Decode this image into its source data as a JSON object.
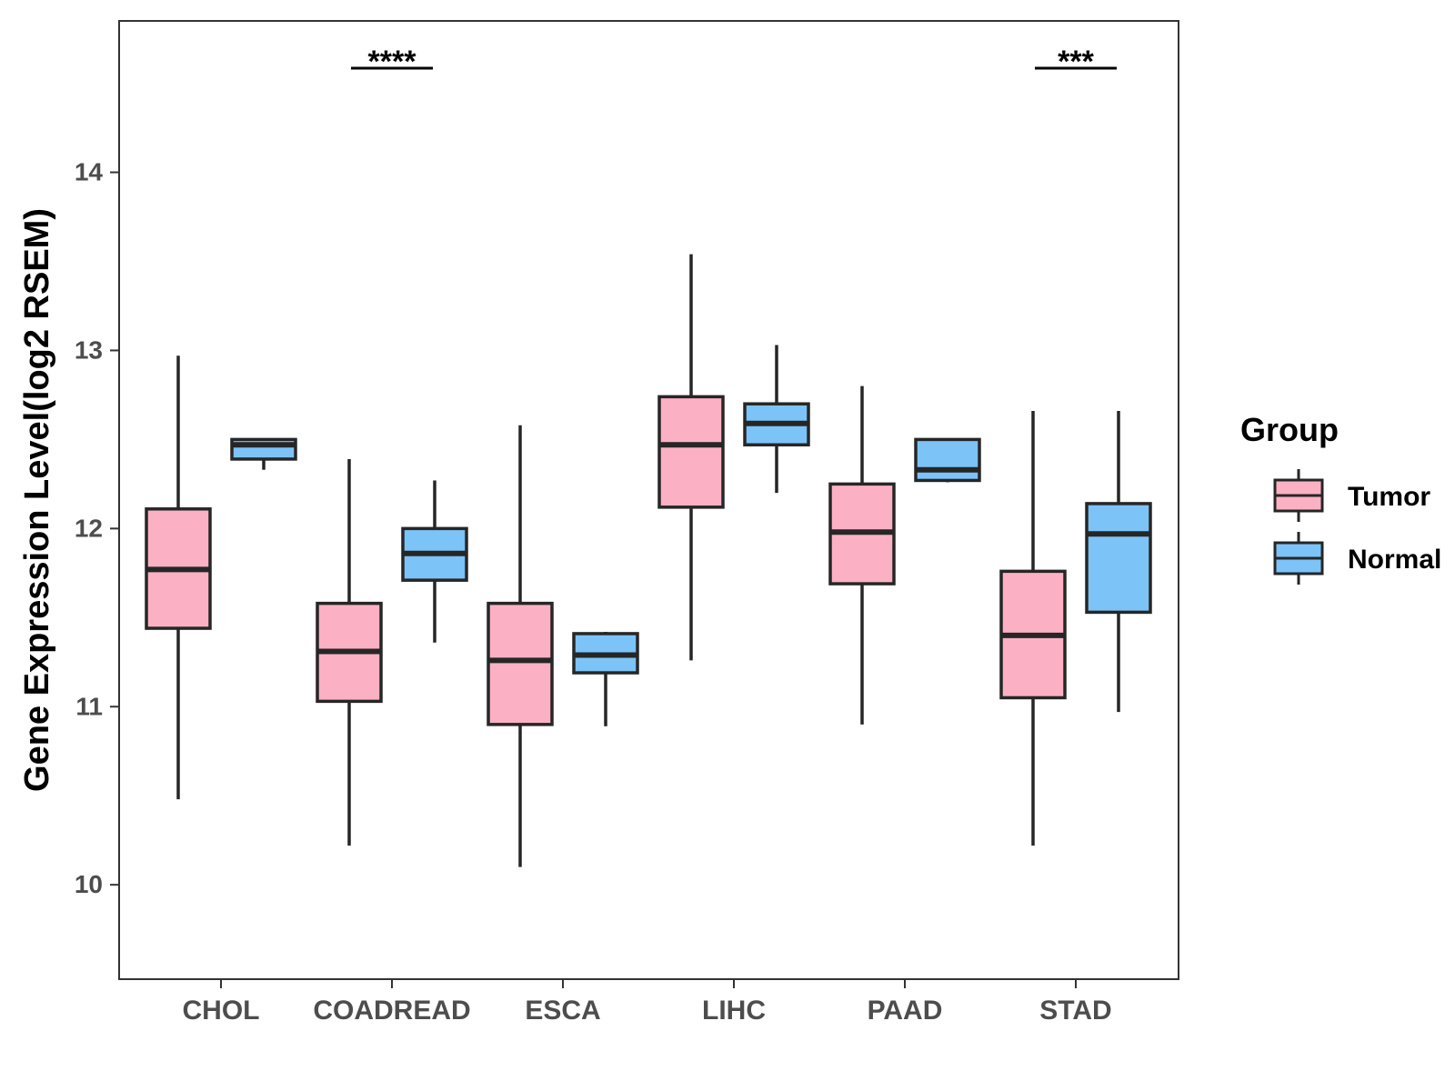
{
  "chart_data": {
    "type": "boxplot",
    "ylabel": "Gene Expression Level(log2 RSEM)",
    "xlabel": "",
    "ylim": [
      9.47,
      14.85
    ],
    "y_ticks": [
      10,
      11,
      12,
      13,
      14
    ],
    "y_tick_labels": [
      "10",
      "11",
      "12",
      "13",
      "14"
    ],
    "categories": [
      "CHOL",
      "COADREAD",
      "ESCA",
      "LIHC",
      "PAAD",
      "STAD"
    ],
    "legend": {
      "title": "Group",
      "position": "right",
      "entries": [
        {
          "name": "Tumor",
          "color": "#FBB1C3"
        },
        {
          "name": "Normal",
          "color": "#7CC3F7"
        }
      ]
    },
    "series": [
      {
        "name": "Tumor",
        "color": "#FBB1C3",
        "boxes": [
          {
            "category": "CHOL",
            "min": 10.48,
            "q1": 11.44,
            "median": 11.77,
            "q3": 12.11,
            "max": 12.97
          },
          {
            "category": "COADREAD",
            "min": 10.22,
            "q1": 11.03,
            "median": 11.31,
            "q3": 11.58,
            "max": 12.39
          },
          {
            "category": "ESCA",
            "min": 10.1,
            "q1": 10.9,
            "median": 11.26,
            "q3": 11.58,
            "max": 12.58
          },
          {
            "category": "LIHC",
            "min": 11.26,
            "q1": 12.12,
            "median": 12.47,
            "q3": 12.74,
            "max": 13.54
          },
          {
            "category": "PAAD",
            "min": 10.9,
            "q1": 11.69,
            "median": 11.98,
            "q3": 12.25,
            "max": 12.8
          },
          {
            "category": "STAD",
            "min": 10.22,
            "q1": 11.05,
            "median": 11.4,
            "q3": 11.76,
            "max": 12.66
          }
        ]
      },
      {
        "name": "Normal",
        "color": "#7CC3F7",
        "boxes": [
          {
            "category": "CHOL",
            "min": 12.33,
            "q1": 12.39,
            "median": 12.47,
            "q3": 12.5,
            "max": 12.5
          },
          {
            "category": "COADREAD",
            "min": 11.36,
            "q1": 11.71,
            "median": 11.86,
            "q3": 12.0,
            "max": 12.27
          },
          {
            "category": "ESCA",
            "min": 10.89,
            "q1": 11.19,
            "median": 11.29,
            "q3": 11.41,
            "max": 11.42
          },
          {
            "category": "LIHC",
            "min": 12.2,
            "q1": 12.47,
            "median": 12.59,
            "q3": 12.7,
            "max": 13.03
          },
          {
            "category": "PAAD",
            "min": 12.26,
            "q1": 12.27,
            "median": 12.33,
            "q3": 12.5,
            "max": 12.5
          },
          {
            "category": "STAD",
            "min": 10.97,
            "q1": 11.53,
            "median": 11.97,
            "q3": 12.14,
            "max": 12.66
          }
        ]
      }
    ],
    "annotations": [
      {
        "category": "COADREAD",
        "text": "****"
      },
      {
        "category": "STAD",
        "text": "***"
      }
    ]
  }
}
